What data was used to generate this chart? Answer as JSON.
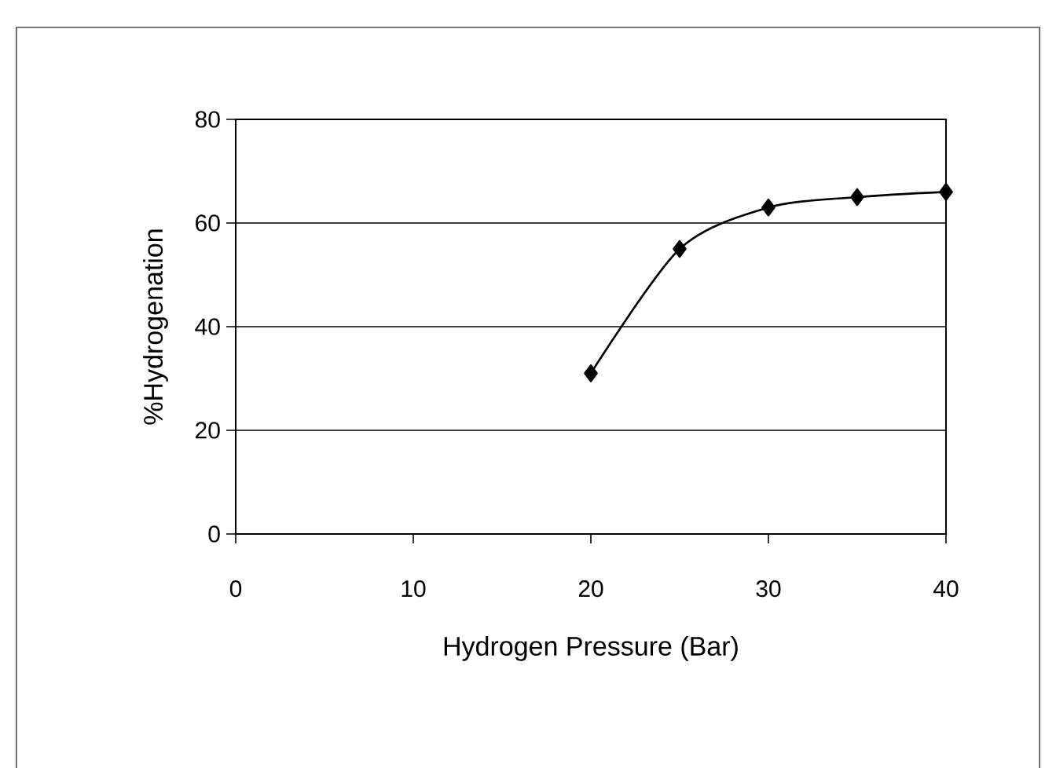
{
  "chart_data": {
    "type": "line",
    "xlabel": "Hydrogen Pressure (Bar)",
    "ylabel": "%Hydrogenation",
    "x": [
      20,
      25,
      30,
      35,
      40
    ],
    "values": [
      31,
      55,
      63,
      65,
      66
    ],
    "color": "#000000",
    "xlim": [
      0,
      40
    ],
    "ylim": [
      0,
      80
    ],
    "xticks": [
      0,
      10,
      20,
      30,
      40
    ],
    "yticks": [
      0,
      20,
      40,
      60,
      80
    ],
    "grid": "y",
    "marker": "diamond"
  }
}
